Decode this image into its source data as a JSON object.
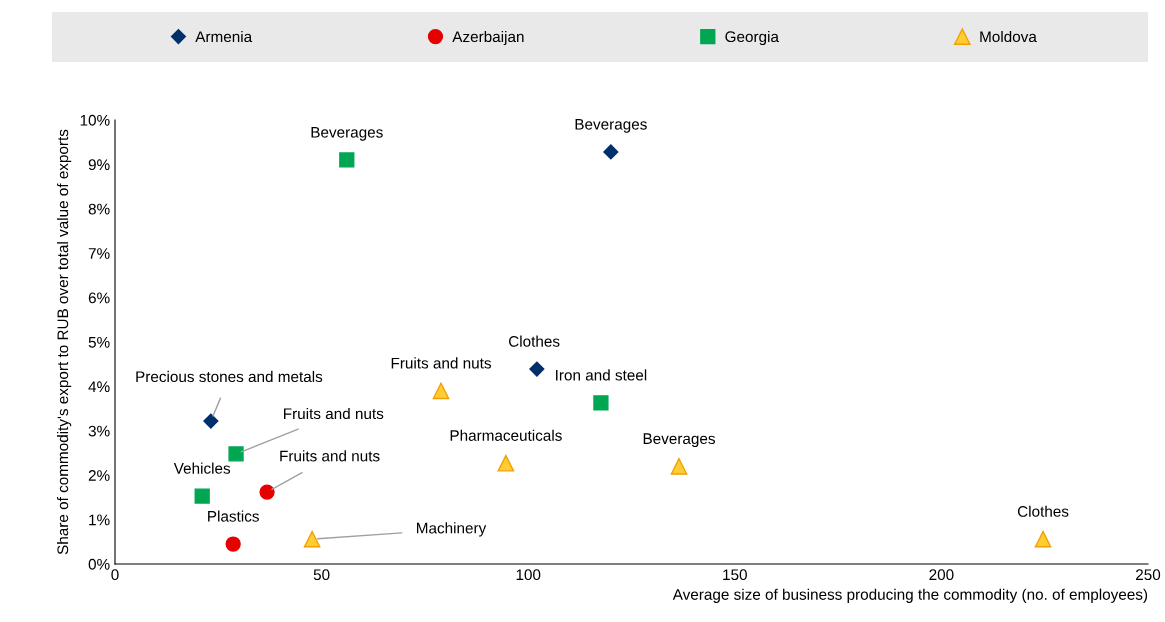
{
  "chart_data": {
    "type": "scatter",
    "xlabel": "Average size of business producing the commodity (no. of employees)",
    "ylabel": "Share of commodity's export to RUB over total value of exports",
    "xlim": [
      0,
      250
    ],
    "xticks": [
      0,
      50,
      100,
      150,
      200,
      250
    ],
    "ylim": [
      0,
      10
    ],
    "yticks": [
      {
        "value": 0,
        "label": "0%"
      },
      {
        "value": 1,
        "label": "1%"
      },
      {
        "value": 2,
        "label": "2%"
      },
      {
        "value": 3,
        "label": "3%"
      },
      {
        "value": 4,
        "label": "4%"
      },
      {
        "value": 5,
        "label": "5%"
      },
      {
        "value": 6,
        "label": "6%"
      },
      {
        "value": 7,
        "label": "7%"
      },
      {
        "value": 8,
        "label": "8%"
      },
      {
        "value": 9,
        "label": "9%"
      },
      {
        "value": 10,
        "label": "10%"
      }
    ],
    "grid": false,
    "legend": "top",
    "series": [
      {
        "name": "Armenia",
        "color": "#002f6c",
        "marker": "diamond",
        "x": [
          120.0,
          102.1,
          23.2
        ],
        "values": [
          9.28,
          4.39,
          3.22
        ]
      },
      {
        "name": "Azerbaijan",
        "color": "#e60000",
        "marker": "circle",
        "x": [
          36.8,
          28.6
        ],
        "values": [
          1.62,
          0.45
        ]
      },
      {
        "name": "Georgia",
        "color": "#00a651",
        "marker": "square",
        "x": [
          56.1,
          117.6,
          29.3,
          21.1
        ],
        "values": [
          9.1,
          3.63,
          2.48,
          1.53
        ]
      },
      {
        "name": "Moldova",
        "color": "#ffcc33",
        "marker": "triangle",
        "x": [
          78.9,
          94.6,
          136.5,
          224.6,
          47.7
        ],
        "values": [
          3.9,
          2.27,
          2.2,
          0.56,
          0.56
        ]
      }
    ],
    "annotations": [
      {
        "text": "Beverages",
        "x": 120.0,
        "y": 9.28
      },
      {
        "text": "Clothes",
        "x": 102.1,
        "y": 4.39
      },
      {
        "text": "Precious stones and metals",
        "x": 23.2,
        "y": 3.22
      },
      {
        "text": "Fruits and nuts",
        "x": 36.8,
        "y": 1.62
      },
      {
        "text": "Plastics",
        "x": 28.6,
        "y": 0.45
      },
      {
        "text": "Beverages",
        "x": 56.1,
        "y": 9.1
      },
      {
        "text": "Iron and steel",
        "x": 117.6,
        "y": 3.63
      },
      {
        "text": "Fruits and nuts",
        "x": 29.3,
        "y": 2.48
      },
      {
        "text": "Vehicles",
        "x": 21.1,
        "y": 1.53
      },
      {
        "text": "Fruits and nuts",
        "x": 78.9,
        "y": 3.9
      },
      {
        "text": "Pharmaceuticals",
        "x": 94.6,
        "y": 2.27
      },
      {
        "text": "Beverages",
        "x": 136.5,
        "y": 2.2
      },
      {
        "text": "Clothes",
        "x": 224.6,
        "y": 0.56
      },
      {
        "text": "Machinery",
        "x": 47.7,
        "y": 0.56
      }
    ]
  }
}
